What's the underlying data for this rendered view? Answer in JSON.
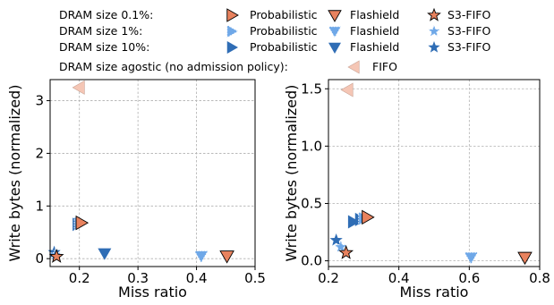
{
  "colors": {
    "orange": "#e8825e",
    "light_blue": "#6fa8e8",
    "dark_blue": "#2f6db5",
    "fifo": "#f5c6b5"
  },
  "legend": {
    "rows": [
      {
        "label": "DRAM size 0.1%:",
        "entries": [
          {
            "text": "Probabilistic",
            "marker": "triangle-right",
            "color": "#e8825e",
            "dashed": false
          },
          {
            "text": "Flashield",
            "marker": "triangle-down",
            "color": "#e8825e",
            "dashed": false
          },
          {
            "text": "S3-FIFO",
            "marker": "star",
            "color": "#e8825e",
            "dashed": false
          }
        ]
      },
      {
        "label": "DRAM size 1%:",
        "entries": [
          {
            "text": "Probabilistic",
            "marker": "triangle-right",
            "color": "#6fa8e8",
            "dashed": true
          },
          {
            "text": "Flashield",
            "marker": "triangle-down",
            "color": "#6fa8e8",
            "dashed": true
          },
          {
            "text": "S3-FIFO",
            "marker": "star",
            "color": "#6fa8e8",
            "dashed": true
          }
        ]
      },
      {
        "label": "DRAM size 10%:",
        "entries": [
          {
            "text": "Probabilistic",
            "marker": "triangle-right",
            "color": "#2f6db5",
            "dashed": false
          },
          {
            "text": "Flashield",
            "marker": "triangle-down",
            "color": "#2f6db5",
            "dashed": false
          },
          {
            "text": "S3-FIFO",
            "marker": "star",
            "color": "#2f6db5",
            "dashed": false
          }
        ]
      },
      {
        "label": "DRAM size agostic (no admission policy):",
        "entries": [
          {
            "text": "FIFO",
            "marker": "triangle-left",
            "color": "#f5c6b5",
            "dashed": false
          }
        ]
      }
    ]
  },
  "chart_data": [
    {
      "type": "scatter",
      "xlabel": "Miss ratio",
      "ylabel": "Write bytes (normalized)",
      "xlim": [
        0.15,
        0.5
      ],
      "ylim": [
        -0.15,
        3.4
      ],
      "xticks": [
        0.2,
        0.3,
        0.4,
        0.5
      ],
      "xtick_labels": [
        "0.2",
        "0.3",
        "0.4",
        "0.5"
      ],
      "yticks": [
        0,
        1,
        2,
        3
      ],
      "ytick_labels": [
        "0",
        "1",
        "2",
        "3"
      ],
      "grid": true,
      "points": [
        {
          "series": "FIFO",
          "marker": "triangle-left",
          "color": "#f5c6b5",
          "dashed": false,
          "x": 0.2,
          "y": 3.25
        },
        {
          "series": "Probabilistic 10%",
          "marker": "triangle-right",
          "color": "#2f6db5",
          "dashed": false,
          "x": 0.197,
          "y": 0.65
        },
        {
          "series": "Probabilistic 1%",
          "marker": "triangle-right",
          "color": "#6fa8e8",
          "dashed": true,
          "x": 0.2,
          "y": 0.67
        },
        {
          "series": "Probabilistic 0.1%",
          "marker": "triangle-right",
          "color": "#e8825e",
          "dashed": false,
          "x": 0.203,
          "y": 0.68
        },
        {
          "series": "Flashield 10%",
          "marker": "triangle-down",
          "color": "#2f6db5",
          "dashed": false,
          "x": 0.243,
          "y": 0.1
        },
        {
          "series": "Flashield 1%",
          "marker": "triangle-down",
          "color": "#6fa8e8",
          "dashed": true,
          "x": 0.408,
          "y": 0.05
        },
        {
          "series": "Flashield 0.1%",
          "marker": "triangle-down",
          "color": "#e8825e",
          "dashed": false,
          "x": 0.452,
          "y": 0.05
        },
        {
          "series": "S3-FIFO 10%",
          "marker": "star",
          "color": "#2f6db5",
          "dashed": false,
          "x": 0.157,
          "y": 0.12
        },
        {
          "series": "S3-FIFO 1%",
          "marker": "star",
          "color": "#6fa8e8",
          "dashed": true,
          "x": 0.159,
          "y": 0.07
        },
        {
          "series": "S3-FIFO 0.1%",
          "marker": "star",
          "color": "#e8825e",
          "dashed": false,
          "x": 0.161,
          "y": 0.04
        }
      ]
    },
    {
      "type": "scatter",
      "xlabel": "Miss ratio",
      "ylabel": "Write bytes (normalized)",
      "xlim": [
        0.2,
        0.8
      ],
      "ylim": [
        -0.05,
        1.58
      ],
      "xticks": [
        0.2,
        0.4,
        0.6,
        0.8
      ],
      "xtick_labels": [
        "0.2",
        "0.4",
        "0.6",
        "0.8"
      ],
      "yticks": [
        0,
        0.5,
        1.0,
        1.5
      ],
      "ytick_labels": [
        "0.0",
        "0.5",
        "1.0",
        "1.5"
      ],
      "grid": true,
      "points": [
        {
          "series": "FIFO",
          "marker": "triangle-left",
          "color": "#f5c6b5",
          "dashed": false,
          "x": 0.255,
          "y": 1.49
        },
        {
          "series": "Probabilistic 10%",
          "marker": "triangle-right",
          "color": "#2f6db5",
          "dashed": false,
          "x": 0.27,
          "y": 0.34
        },
        {
          "series": "Probabilistic 10% b",
          "marker": "triangle-right",
          "color": "#2f6db5",
          "dashed": false,
          "x": 0.29,
          "y": 0.36
        },
        {
          "series": "Probabilistic 1%",
          "marker": "triangle-right",
          "color": "#6fa8e8",
          "dashed": true,
          "x": 0.3,
          "y": 0.37
        },
        {
          "series": "Probabilistic 0.1%",
          "marker": "triangle-right",
          "color": "#e8825e",
          "dashed": false,
          "x": 0.31,
          "y": 0.38
        },
        {
          "series": "Flashield 1%",
          "marker": "triangle-down",
          "color": "#6fa8e8",
          "dashed": true,
          "x": 0.605,
          "y": 0.03
        },
        {
          "series": "Flashield 0.1%",
          "marker": "triangle-down",
          "color": "#e8825e",
          "dashed": false,
          "x": 0.758,
          "y": 0.03
        },
        {
          "series": "S3-FIFO 10%",
          "marker": "star",
          "color": "#2f6db5",
          "dashed": false,
          "x": 0.222,
          "y": 0.18
        },
        {
          "series": "S3-FIFO 1%",
          "marker": "star",
          "color": "#6fa8e8",
          "dashed": true,
          "x": 0.235,
          "y": 0.12
        },
        {
          "series": "S3-FIFO 0.1%",
          "marker": "star",
          "color": "#e8825e",
          "dashed": false,
          "x": 0.25,
          "y": 0.07
        }
      ]
    }
  ]
}
